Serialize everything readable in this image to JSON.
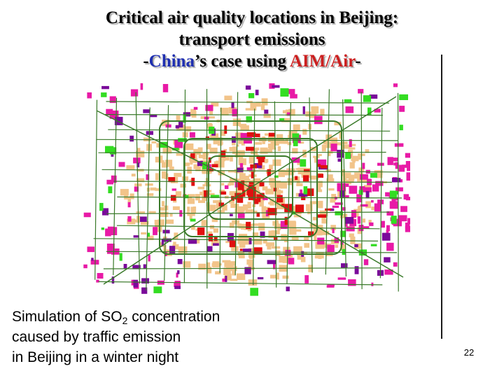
{
  "slide": {
    "title_line1": "Critical air quality locations in Beijing:",
    "title_line2": "transport emissions",
    "title_line3_prefix": "-",
    "title_line3_china": "China",
    "title_line3_mid": "’s case using ",
    "title_line3_aim": "AIM/Air",
    "title_line3_suffix": "-",
    "caption_line1_pre": "Simulation of SO",
    "caption_line1_sub": "2",
    "caption_line1_post": " concentration",
    "caption_line2": "caused by traffic emission",
    "caption_line3": "in Beijing in a winter night",
    "page_number": "22"
  },
  "colors": {
    "title_highlight_china": "#1f2fb0",
    "title_highlight_aim": "#cc1f1f",
    "map_roads": "#3a7a2a",
    "map_urban": "#f2c48a",
    "map_magenta": "#e81aa6",
    "map_purple": "#7a0a9a",
    "map_red": "#e01010",
    "map_green": "#33dd22"
  }
}
